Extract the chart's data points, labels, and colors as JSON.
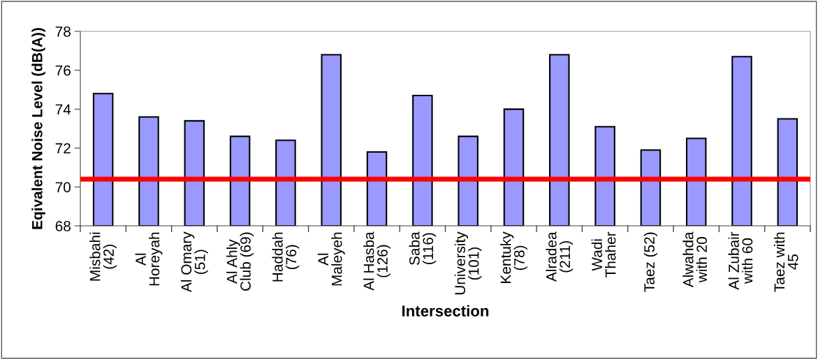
{
  "chart_data": {
    "type": "bar",
    "xlabel": "Intersection",
    "ylabel": "Eqivalent Noise Level (dB(A))",
    "categories": [
      "Misbahi\n(42)",
      "Al\nHoreyah",
      "Al Omary\n(51)",
      "Al Ahly\nClub (69)",
      "Haddah\n(76)",
      "Al\nMaleyeh",
      "Al Hasba\n(126)",
      "Saba\n(116)",
      "University\n(101)",
      "Kentuky\n(78)",
      "Alradea\n(211)",
      "Wadi\nThaher",
      "Taez (52)",
      "Alwahda\nwith 20",
      "Al Zubair\nwith 60",
      "Taez with\n45"
    ],
    "values": [
      74.8,
      73.6,
      73.4,
      72.6,
      72.4,
      76.8,
      71.8,
      74.7,
      72.6,
      74.0,
      76.8,
      73.1,
      71.9,
      72.5,
      76.7,
      73.5
    ],
    "color": "#9999ff",
    "ylim": [
      68,
      78
    ],
    "yticks": [
      68,
      70,
      72,
      74,
      76,
      78
    ],
    "grid": false,
    "legend": false,
    "ref_lines": [
      {
        "axis": "y",
        "value": 70.4,
        "label": null,
        "color": "#ff0000",
        "line_style": "solid"
      }
    ]
  }
}
